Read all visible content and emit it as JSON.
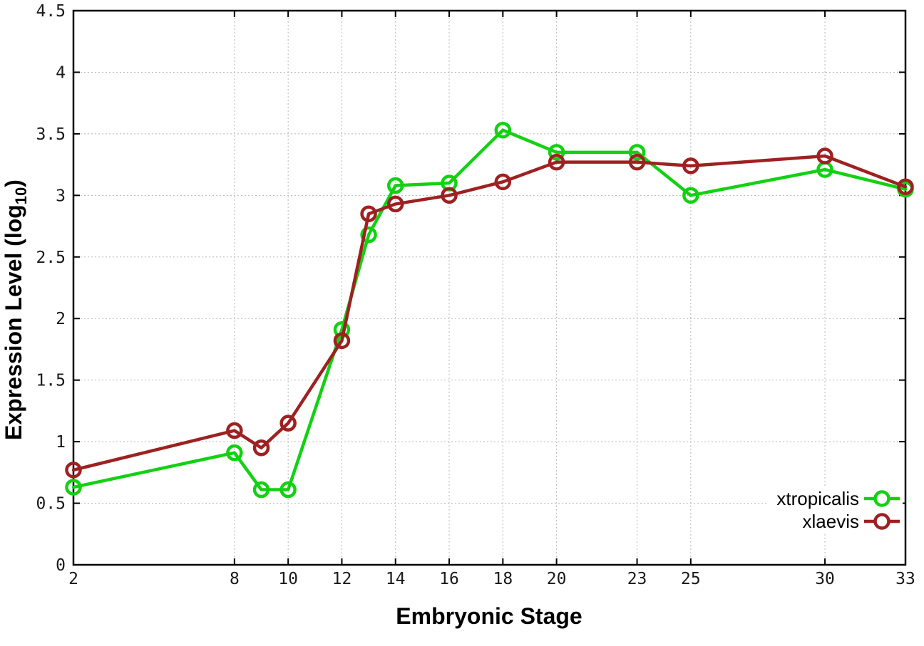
{
  "page": {
    "background": "#ffffff",
    "border_color": "#000000",
    "grid_color": "#b8b8b8"
  },
  "chart_data": {
    "type": "line",
    "title": "",
    "xlabel": "Embryonic Stage",
    "ylabel": "Expression Level (log10)",
    "ylabel_parts": {
      "main": "Expression Level (log",
      "sub": "10",
      "end": ")"
    },
    "xlim": [
      2,
      33
    ],
    "ylim": [
      0,
      4.5
    ],
    "x_ticks": [
      2,
      8,
      10,
      12,
      14,
      16,
      18,
      20,
      23,
      25,
      30,
      33
    ],
    "y_ticks": [
      0,
      0.5,
      1,
      1.5,
      2,
      2.5,
      3,
      3.5,
      4,
      4.5
    ],
    "grid": true,
    "legend_position": "bottom-right",
    "x": [
      2,
      8,
      9,
      10,
      12,
      13,
      14,
      16,
      18,
      20,
      23,
      25,
      30,
      33
    ],
    "series": [
      {
        "name": "xtropicalis",
        "color": "#12d112",
        "marker": "open-circle",
        "values": [
          0.63,
          0.91,
          0.61,
          0.61,
          1.91,
          2.68,
          3.08,
          3.1,
          3.53,
          3.35,
          3.35,
          3.0,
          3.21,
          3.05
        ]
      },
      {
        "name": "xlaevis",
        "color": "#9e2121",
        "marker": "open-circle",
        "values": [
          0.77,
          1.09,
          0.95,
          1.15,
          1.82,
          2.85,
          2.93,
          3.0,
          3.11,
          3.27,
          3.27,
          3.24,
          3.32,
          3.07
        ]
      }
    ]
  }
}
